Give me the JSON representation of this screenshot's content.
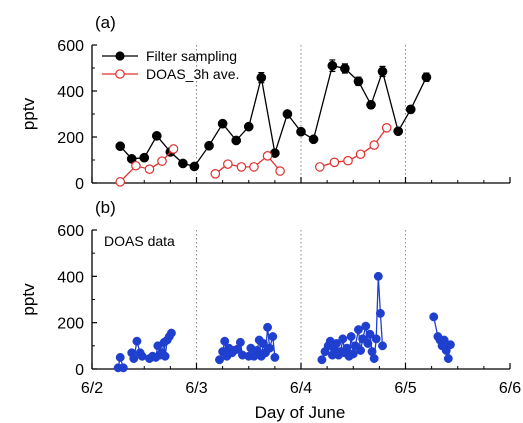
{
  "figure": {
    "xlabel": "Day of June"
  },
  "colors": {
    "filter": "#000000",
    "doas_ave": "#e03030",
    "doas": "#1f3fcf",
    "vline": "#888888"
  },
  "chart_data": [
    {
      "panel_label": "(a)",
      "type": "line",
      "ylabel": "pptv",
      "ylim": [
        0,
        600
      ],
      "yticks": [
        0,
        200,
        400,
        600
      ],
      "xlim": [
        2,
        6
      ],
      "xtick_values": [
        2,
        3,
        4,
        5,
        6
      ],
      "xtick_labels": [
        "6/2",
        "6/3",
        "6/4",
        "6/5",
        "6/6"
      ],
      "minor_tick_step": 0.25,
      "vlines": [
        3,
        4,
        5
      ],
      "legend": {
        "placement": "top-left"
      },
      "series": [
        {
          "name": "Filter sampling",
          "color_key": "filter",
          "marker": "filled-circle",
          "error_bars": true,
          "segments": [
            [
              [
                2.27,
                160
              ],
              [
                2.38,
                105
              ],
              [
                2.5,
                110
              ],
              [
                2.62,
                205
              ],
              [
                2.75,
                135
              ],
              [
                2.87,
                85
              ],
              [
                2.98,
                72
              ],
              [
                3.12,
                162
              ],
              [
                3.25,
                258
              ],
              [
                3.38,
                185
              ],
              [
                3.5,
                245
              ],
              [
                3.62,
                458
              ],
              [
                3.75,
                130
              ],
              [
                3.87,
                300
              ],
              [
                4.0,
                223
              ],
              [
                4.12,
                190
              ],
              [
                4.3,
                510
              ],
              [
                4.42,
                498
              ],
              [
                4.55,
                442
              ],
              [
                4.67,
                340
              ],
              [
                4.78,
                485
              ],
              [
                4.93,
                225
              ],
              [
                5.05,
                320
              ],
              [
                5.2,
                460
              ]
            ]
          ],
          "errors": [
            [
              2.75,
              15
            ],
            [
              3.62,
              22
            ],
            [
              4.3,
              25
            ],
            [
              4.42,
              20
            ],
            [
              4.55,
              18
            ],
            [
              4.67,
              15
            ],
            [
              4.78,
              22
            ],
            [
              5.05,
              15
            ],
            [
              5.2,
              18
            ]
          ]
        },
        {
          "name": "DOAS_3h ave.",
          "color_key": "doas_ave",
          "marker": "open-circle",
          "error_bars": false,
          "segments": [
            [
              [
                2.27,
                5
              ],
              [
                2.42,
                75
              ],
              [
                2.55,
                60
              ],
              [
                2.67,
                95
              ],
              [
                2.78,
                148
              ]
            ],
            [
              [
                3.18,
                40
              ],
              [
                3.3,
                82
              ],
              [
                3.43,
                70
              ],
              [
                3.55,
                70
              ],
              [
                3.68,
                118
              ],
              [
                3.8,
                52
              ]
            ],
            [
              [
                4.18,
                70
              ],
              [
                4.32,
                90
              ],
              [
                4.45,
                97
              ],
              [
                4.57,
                125
              ],
              [
                4.7,
                165
              ],
              [
                4.82,
                240
              ]
            ]
          ]
        }
      ]
    },
    {
      "panel_label": "(b)",
      "type": "line",
      "ylabel": "pptv",
      "ylim": [
        0,
        600
      ],
      "yticks": [
        0,
        200,
        400,
        600
      ],
      "xlim": [
        2,
        6
      ],
      "xtick_values": [
        2,
        3,
        4,
        5,
        6
      ],
      "xtick_labels": [
        "6/2",
        "6/3",
        "6/4",
        "6/5",
        "6/6"
      ],
      "minor_tick_step": 0.25,
      "vlines": [
        3,
        4,
        5
      ],
      "annotation": "DOAS data",
      "series": [
        {
          "name": "DOAS data",
          "color_key": "doas",
          "marker": "filled-circle",
          "error_bars": false,
          "segments": [
            [
              [
                2.25,
                5
              ],
              [
                2.27,
                50
              ],
              [
                2.3,
                5
              ]
            ],
            [
              [
                2.38,
                70
              ],
              [
                2.4,
                45
              ],
              [
                2.43,
                120
              ],
              [
                2.46,
                70
              ],
              [
                2.48,
                55
              ]
            ],
            [
              [
                2.55,
                45
              ],
              [
                2.58,
                55
              ],
              [
                2.61,
                50
              ],
              [
                2.63,
                100
              ],
              [
                2.65,
                60
              ],
              [
                2.67,
                70
              ],
              [
                2.69,
                115
              ],
              [
                2.7,
                55
              ],
              [
                2.72,
                125
              ],
              [
                2.74,
                140
              ],
              [
                2.76,
                155
              ]
            ],
            [
              [
                3.22,
                40
              ],
              [
                3.25,
                75
              ],
              [
                3.27,
                120
              ],
              [
                3.29,
                55
              ],
              [
                3.31,
                90
              ],
              [
                3.34,
                70
              ],
              [
                3.36,
                80
              ],
              [
                3.39,
                85
              ],
              [
                3.42,
                115
              ],
              [
                3.44,
                60
              ]
            ],
            [
              [
                3.5,
                55
              ],
              [
                3.52,
                90
              ],
              [
                3.55,
                55
              ],
              [
                3.58,
                80
              ],
              [
                3.6,
                125
              ],
              [
                3.62,
                55
              ],
              [
                3.64,
                110
              ],
              [
                3.66,
                70
              ],
              [
                3.68,
                180
              ],
              [
                3.7,
                90
              ],
              [
                3.73,
                140
              ],
              [
                3.75,
                50
              ]
            ],
            [
              [
                4.2,
                40
              ],
              [
                4.23,
                75
              ],
              [
                4.26,
                100
              ],
              [
                4.28,
                120
              ],
              [
                4.3,
                60
              ],
              [
                4.32,
                85
              ],
              [
                4.34,
                110
              ],
              [
                4.36,
                60
              ],
              [
                4.38,
                75
              ],
              [
                4.4,
                130
              ],
              [
                4.42,
                70
              ],
              [
                4.44,
                90
              ],
              [
                4.46,
                55
              ],
              [
                4.48,
                140
              ],
              [
                4.5,
                65
              ],
              [
                4.52,
                100
              ],
              [
                4.55,
                170
              ],
              [
                4.57,
                80
              ],
              [
                4.59,
                130
              ],
              [
                4.62,
                185
              ],
              [
                4.64,
                110
              ],
              [
                4.66,
                150
              ],
              [
                4.68,
                75
              ],
              [
                4.7,
                45
              ],
              [
                4.72,
                130
              ],
              [
                4.74,
                400
              ],
              [
                4.76,
                240
              ],
              [
                4.78,
                100
              ]
            ]
          ]
        },
        {
          "name": "",
          "color_key": "doas",
          "marker": "filled-circle",
          "error_bars": false,
          "segments": [
            [
              [
                5.27,
                225
              ],
              [
                5.31,
                140
              ],
              [
                5.33,
                125
              ],
              [
                5.35,
                100
              ],
              [
                5.37,
                125
              ],
              [
                5.39,
                80
              ],
              [
                5.41,
                45
              ],
              [
                5.43,
                105
              ]
            ]
          ]
        }
      ]
    }
  ]
}
